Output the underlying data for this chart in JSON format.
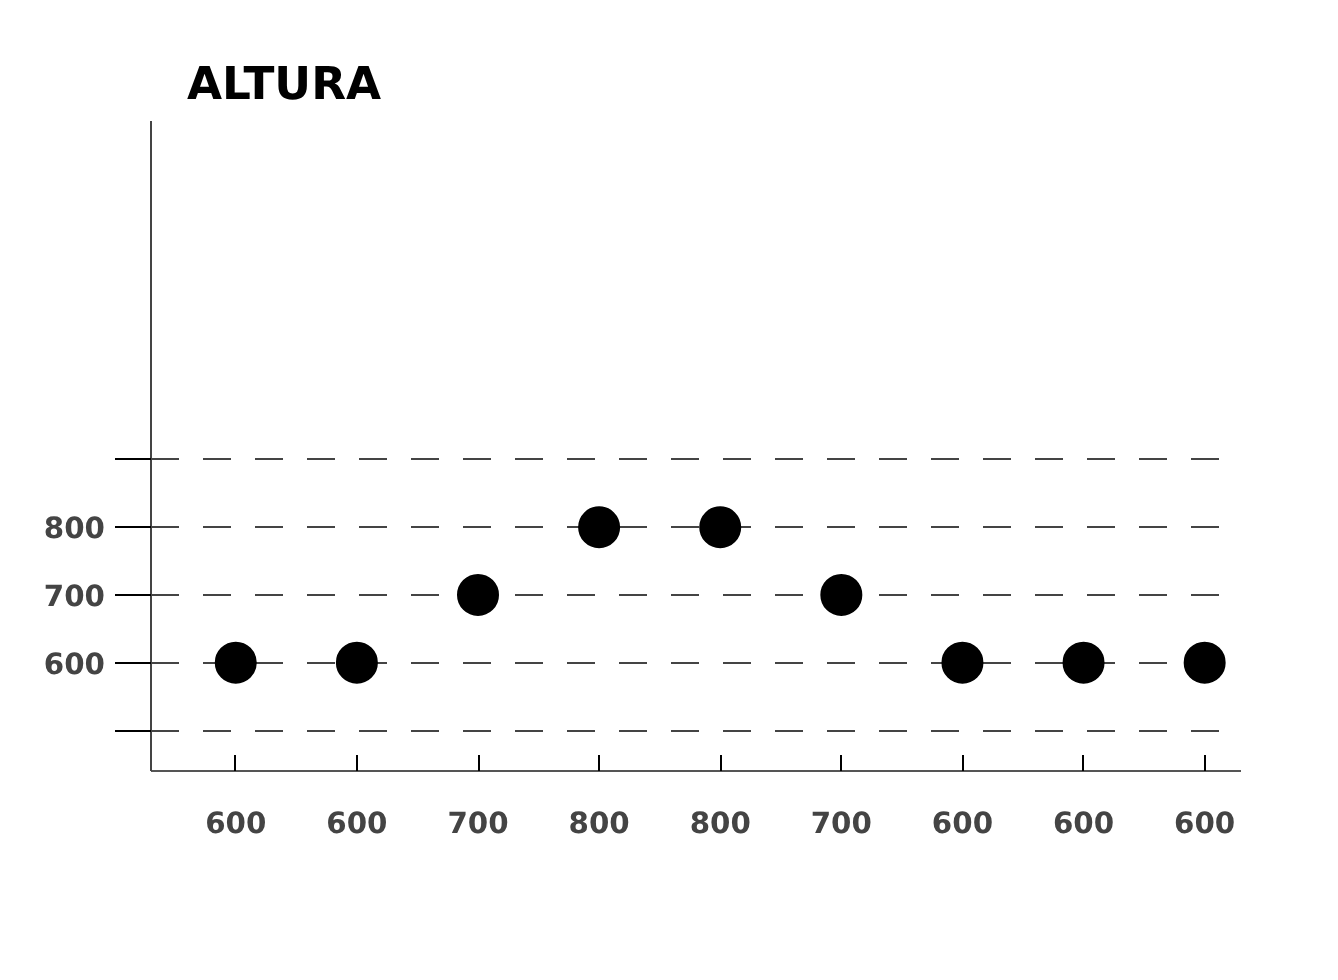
{
  "chart_data": {
    "type": "scatter",
    "title": "ALTURA",
    "categories": [
      null,
      null,
      null,
      null,
      null,
      null,
      null,
      null,
      null
    ],
    "series": [
      {
        "color": "#000000",
        "values": [
          600,
          600,
          700,
          800,
          800,
          700,
          600,
          600,
          600
        ]
      }
    ],
    "ylim": [
      440,
      1400
    ],
    "yticks": [
      {
        "value": 500,
        "label": null
      },
      600,
      700,
      800,
      {
        "value": 900,
        "label": null
      }
    ],
    "grid": "y",
    "line_style": "dashed",
    "marker": "circle",
    "data_labels": true
  }
}
